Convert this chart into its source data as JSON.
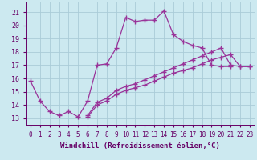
{
  "xlabel": "Windchill (Refroidissement éolien,°C)",
  "bg_color": "#cce9f0",
  "line_color": "#993399",
  "grid_color": "#aaccd8",
  "axis_color": "#660066",
  "xlim": [
    -0.5,
    23.5
  ],
  "ylim": [
    12.5,
    21.8
  ],
  "xticks": [
    0,
    1,
    2,
    3,
    4,
    5,
    6,
    7,
    8,
    9,
    10,
    11,
    12,
    13,
    14,
    15,
    16,
    17,
    18,
    19,
    20,
    21,
    22,
    23
  ],
  "yticks": [
    13,
    14,
    15,
    16,
    17,
    18,
    19,
    20,
    21
  ],
  "line1": {
    "x": [
      0,
      1,
      2,
      3,
      4,
      5,
      6,
      7,
      8,
      9,
      10,
      11,
      12,
      13,
      14,
      15,
      16,
      17,
      18,
      19,
      20,
      21
    ],
    "y": [
      15.8,
      14.3,
      13.5,
      13.2,
      13.5,
      13.1,
      14.3,
      17.0,
      17.1,
      18.3,
      20.6,
      20.3,
      20.4,
      20.4,
      21.1,
      19.3,
      18.8,
      18.5,
      18.3,
      17.0,
      16.9,
      16.9
    ]
  },
  "line2": {
    "x": [
      6,
      7,
      8,
      9,
      10,
      11,
      12,
      13,
      14,
      15,
      16,
      17,
      18,
      19,
      20,
      21,
      22,
      23
    ],
    "y": [
      13.2,
      14.2,
      14.5,
      15.1,
      15.4,
      15.6,
      15.9,
      16.2,
      16.5,
      16.8,
      17.1,
      17.4,
      17.7,
      18.0,
      18.3,
      17.0,
      16.9,
      16.9
    ]
  },
  "line3": {
    "x": [
      6,
      7,
      8,
      9,
      10,
      11,
      12,
      13,
      14,
      15,
      16,
      17,
      18,
      19,
      20,
      21,
      22,
      23
    ],
    "y": [
      13.1,
      14.0,
      14.3,
      14.8,
      15.1,
      15.3,
      15.5,
      15.8,
      16.1,
      16.4,
      16.6,
      16.8,
      17.1,
      17.4,
      17.6,
      17.8,
      16.9,
      16.9
    ]
  },
  "marker": "+",
  "markersize": 4,
  "markeredgewidth": 1.0,
  "linewidth": 0.9,
  "tick_fontsize": 5.5,
  "xlabel_fontsize": 6.5
}
